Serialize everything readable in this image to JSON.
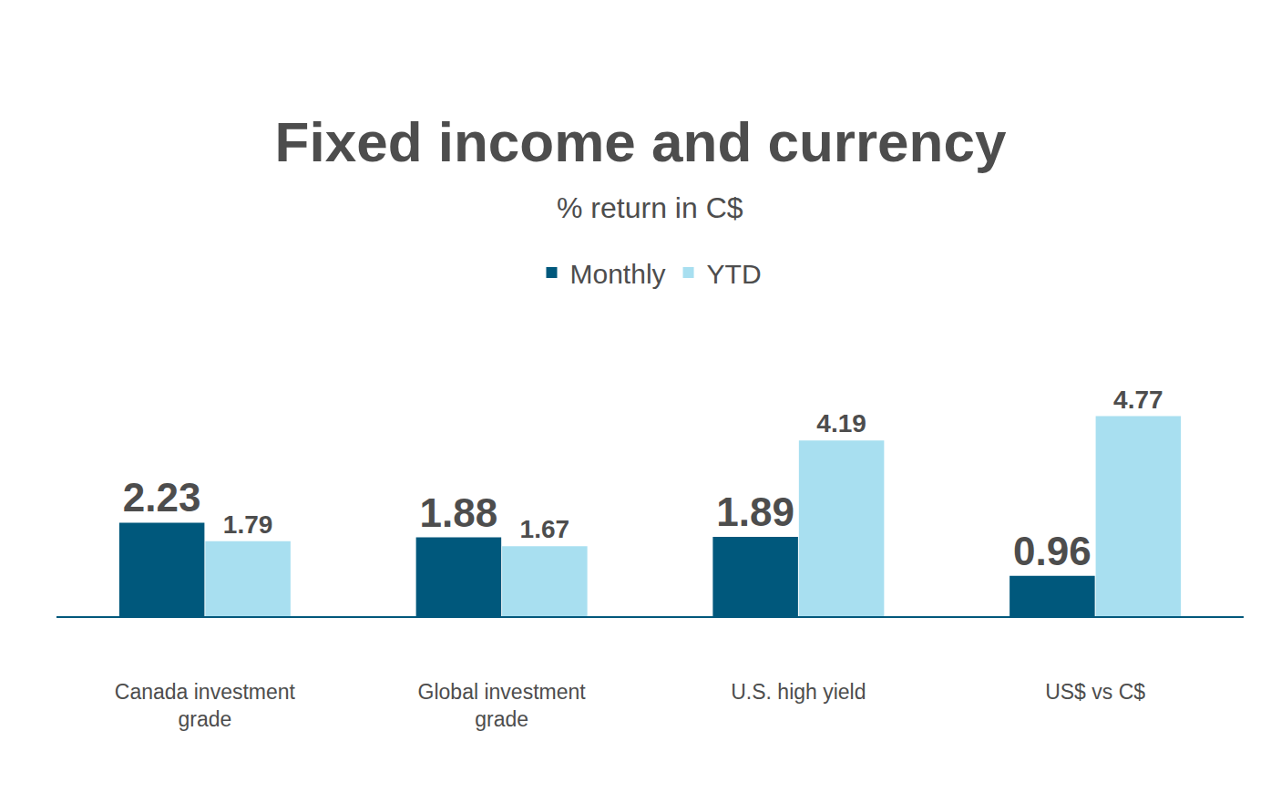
{
  "chart_data": {
    "type": "bar",
    "title": "Fixed income and currency",
    "subtitle": "% return in C$",
    "categories": [
      "Canada investment grade",
      "Global investment grade",
      "U.S. high yield",
      "US$ vs C$"
    ],
    "series": [
      {
        "name": "Monthly",
        "color": "#00587c",
        "values": [
          2.23,
          1.88,
          1.89,
          0.96
        ]
      },
      {
        "name": "YTD",
        "color": "#a8dff0",
        "values": [
          1.79,
          1.67,
          4.19,
          4.77
        ]
      }
    ],
    "data_labels": true,
    "legend": "top",
    "tick_labels": "x",
    "grid": false
  }
}
